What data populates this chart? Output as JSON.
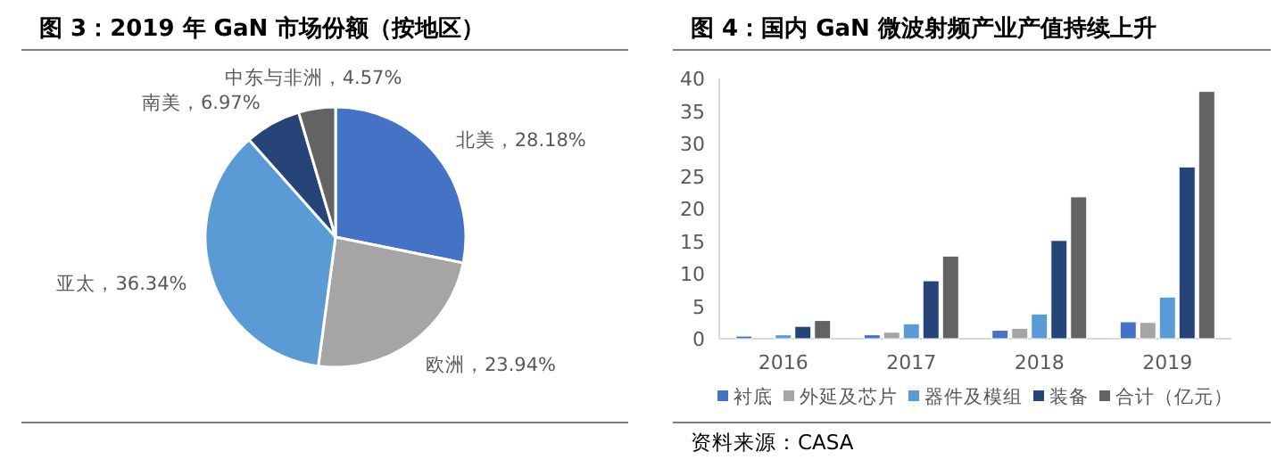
{
  "chart_data": [
    {
      "type": "pie",
      "title": "图 3：2019 年 GaN 市场份额（按地区）",
      "categories": [
        "北美",
        "欧洲",
        "亚太",
        "南美",
        "中东与非洲"
      ],
      "values": [
        28.18,
        23.94,
        36.34,
        6.97,
        4.57
      ],
      "value_labels": [
        "28.18%",
        "23.94%",
        "36.34%",
        "6.97%",
        "4.57%"
      ],
      "colors": [
        "#4472c4",
        "#a5a5a5",
        "#5b9bd5",
        "#264478",
        "#636363"
      ]
    },
    {
      "type": "bar",
      "title": "图 4：国内 GaN 微波射频产业产值持续上升",
      "categories": [
        "2016",
        "2017",
        "2018",
        "2019"
      ],
      "series": [
        {
          "name": "衬底",
          "color": "#4472c4",
          "values": [
            0.4,
            0.6,
            1.3,
            2.6
          ]
        },
        {
          "name": "外延及芯片",
          "color": "#a5a5a5",
          "values": [
            0,
            1.0,
            1.6,
            2.5
          ]
        },
        {
          "name": "器件及模组",
          "color": "#5b9bd5",
          "values": [
            0.6,
            2.3,
            3.8,
            6.4
          ]
        },
        {
          "name": "装备",
          "color": "#264478",
          "values": [
            1.9,
            8.9,
            15.1,
            26.4
          ]
        },
        {
          "name": "合计（亿元）",
          "color": "#636363",
          "values": [
            2.8,
            12.7,
            21.8,
            38.0
          ]
        }
      ],
      "ylim": [
        0,
        40
      ],
      "yticks": [
        0,
        5,
        10,
        15,
        20,
        25,
        30,
        35,
        40
      ],
      "legend": "bottom",
      "grid": false,
      "annotations": [
        "资料来源：CASA"
      ]
    }
  ]
}
